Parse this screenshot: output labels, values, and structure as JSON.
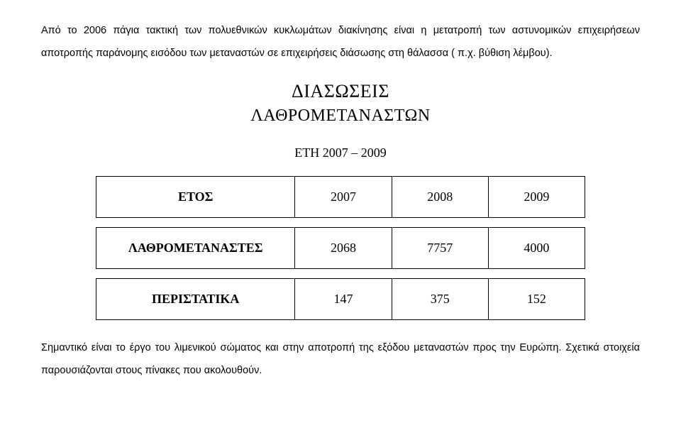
{
  "paragraph1": "Από το 2006 πάγια τακτική των πολυεθνικών κυκλωμάτων διακίνησης είναι η μετατροπή των αστυνομικών επιχειρήσεων αποτροπής παράνομης εισόδου των μεταναστών σε επιχειρήσεις διάσωσης στη θάλασσα ( π.χ. βύθιση λέμβου).",
  "heading1": "ΔΙΑΣΩΣΕΙΣ",
  "heading2": "ΛΑΘΡΟΜΕΤΑΝΑΣΤΩΝ",
  "subheading": "ΕΤΗ 2007 – 2009",
  "table": {
    "header_label": "ΕΤΟΣ",
    "years": [
      "2007",
      "2008",
      "2009"
    ],
    "rows": [
      {
        "label": "ΛΑΘΡΟΜΕΤΑΝΑΣΤΕΣ",
        "values": [
          "2068",
          "7757",
          "4000"
        ]
      },
      {
        "label": "ΠΕΡΙΣΤΑΤΙΚΑ",
        "values": [
          "147",
          "375",
          "152"
        ]
      }
    ]
  },
  "paragraph2": "Σημαντικό είναι το έργο του λιμενικού σώματος και στην αποτροπή της εξόδου μεταναστών προς την Ευρώπη. Σχετικά στοιχεία παρουσιάζονται στους πίνακες που ακολουθούν."
}
